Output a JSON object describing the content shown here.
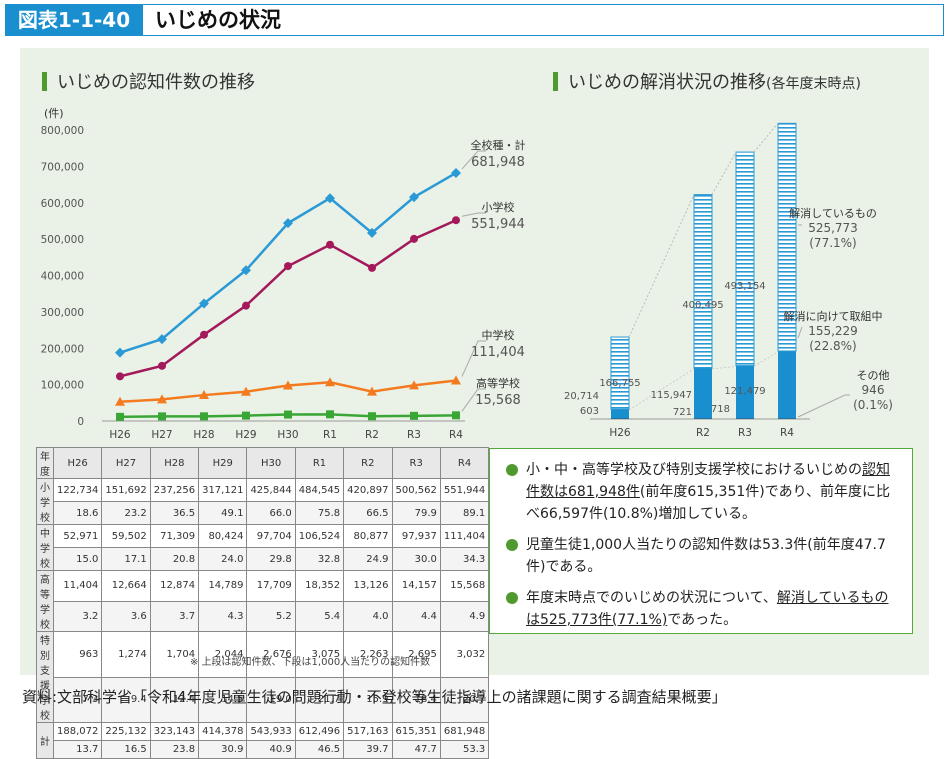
{
  "header": {
    "fig_label": "図表1-1-40",
    "title": "いじめの状況"
  },
  "left_title": "いじめの認知件数の推移",
  "right_title_main": "いじめの解消状況の推移",
  "right_title_sub": "(各年度末時点)",
  "chart_data": [
    {
      "type": "line",
      "title": "いじめの認知件数の推移",
      "ylabel": "(件)",
      "ylim": [
        0,
        800000
      ],
      "yticks": [
        "800,000",
        "700,000",
        "600,000",
        "500,000",
        "400,000",
        "300,000",
        "200,000",
        "100,000",
        "0"
      ],
      "categories": [
        "H26",
        "H27",
        "H28",
        "H29",
        "H30",
        "R1",
        "R2",
        "R3",
        "R4"
      ],
      "grid": false,
      "series": [
        {
          "name": "全校種・計",
          "color": "#2a9ad6",
          "marker": "diamond",
          "end_label": "681,948",
          "values": [
            188072,
            225132,
            323143,
            414378,
            543933,
            612496,
            517163,
            615351,
            681948
          ]
        },
        {
          "name": "小学校",
          "color": "#a3195b",
          "marker": "circle",
          "end_label": "551,944",
          "values": [
            122734,
            151692,
            237256,
            317121,
            425844,
            484545,
            420897,
            500562,
            551944
          ]
        },
        {
          "name": "中学校",
          "color": "#f47a1f",
          "marker": "triangle",
          "end_label": "111,404",
          "values": [
            52971,
            59502,
            71309,
            80424,
            97704,
            106524,
            80877,
            97937,
            111404
          ]
        },
        {
          "name": "高等学校",
          "color": "#3aa635",
          "marker": "square",
          "end_label": "15,568",
          "values": [
            11404,
            12664,
            12874,
            14789,
            17709,
            18352,
            13126,
            14157,
            15568
          ]
        }
      ]
    },
    {
      "type": "bar",
      "title": "いじめの解消状況の推移(各年度末時点)",
      "categories": [
        "H26",
        "R2",
        "R3",
        "R4"
      ],
      "stacked": true,
      "series": [
        {
          "name": "解消しているもの",
          "values": [
            166755,
            400495,
            493154,
            525773
          ]
        },
        {
          "name": "解消に向けて取組中",
          "values": [
            20714,
            115947,
            121479,
            155229
          ]
        },
        {
          "name": "その他",
          "values": [
            603,
            721,
            718,
            946
          ]
        }
      ],
      "labels": {
        "H26": [
          "166,755",
          "20,714",
          "603"
        ],
        "R2": [
          "400,495",
          "115,947",
          "721"
        ],
        "R3": [
          "493,154",
          "121,479",
          "718"
        ]
      },
      "legend": [
        {
          "text": "解消しているもの",
          "value": "525,773",
          "pct": "(77.1%)"
        },
        {
          "text": "解消に向けて取組中",
          "value": "155,229",
          "pct": "(22.8%)"
        },
        {
          "text": "その他",
          "value": "946",
          "pct": "(0.1%)"
        }
      ]
    }
  ],
  "table": {
    "header": [
      "年度",
      "H26",
      "H27",
      "H28",
      "H29",
      "H30",
      "R1",
      "R2",
      "R3",
      "R4"
    ],
    "rows": [
      {
        "label": "小学校",
        "counts": [
          "122,734",
          "151,692",
          "237,256",
          "317,121",
          "425,844",
          "484,545",
          "420,897",
          "500,562",
          "551,944"
        ],
        "rates": [
          "18.6",
          "23.2",
          "36.5",
          "49.1",
          "66.0",
          "75.8",
          "66.5",
          "79.9",
          "89.1"
        ]
      },
      {
        "label": "中学校",
        "counts": [
          "52,971",
          "59,502",
          "71,309",
          "80,424",
          "97,704",
          "106,524",
          "80,877",
          "97,937",
          "111,404"
        ],
        "rates": [
          "15.0",
          "17.1",
          "20.8",
          "24.0",
          "29.8",
          "32.8",
          "24.9",
          "30.0",
          "34.3"
        ]
      },
      {
        "label": "高等学校",
        "counts": [
          "11,404",
          "12,664",
          "12,874",
          "14,789",
          "17,709",
          "18,352",
          "13,126",
          "14,157",
          "15,568"
        ],
        "rates": [
          "3.2",
          "3.6",
          "3.7",
          "4.3",
          "5.2",
          "5.4",
          "4.0",
          "4.4",
          "4.9"
        ]
      },
      {
        "label": "特別支援学校",
        "counts": [
          "963",
          "1,274",
          "1,704",
          "2,044",
          "2,676",
          "3,075",
          "2,263",
          "2,695",
          "3,032"
        ],
        "rates": [
          "7.3",
          "9.4",
          "12.4",
          "14.5",
          "19.0",
          "21.7",
          "15.9",
          "18.4",
          "20.7"
        ]
      },
      {
        "label": "計",
        "counts": [
          "188,072",
          "225,132",
          "323,143",
          "414,378",
          "543,933",
          "612,496",
          "517,163",
          "615,351",
          "681,948"
        ],
        "rates": [
          "13.7",
          "16.5",
          "23.8",
          "30.9",
          "40.9",
          "46.5",
          "39.7",
          "47.7",
          "53.3"
        ]
      }
    ]
  },
  "note": "※ 上段は認知件数、下段は1,000人当たりの認知件数",
  "summary": {
    "item1_pre": "小・中・高等学校及び特別支援学校におけるいじめの",
    "item1_u": "認知件数は681,948件",
    "item1_post": "(前年度615,351件)であり、前年度に比べ66,597件(10.8%)増加している。",
    "item2": "児童生徒1,000人当たりの認知件数は53.3件(前年度47.7件)である。",
    "item3_pre": "年度末時点でのいじめの状況について、",
    "item3_u": "解消しているものは525,773件(77.1%)",
    "item3_post": "であった。"
  },
  "source": "資料:文部科学省「令和4年度児童生徒の問題行動・不登校等生徒指導上の諸課題に関する調査結果概要」"
}
